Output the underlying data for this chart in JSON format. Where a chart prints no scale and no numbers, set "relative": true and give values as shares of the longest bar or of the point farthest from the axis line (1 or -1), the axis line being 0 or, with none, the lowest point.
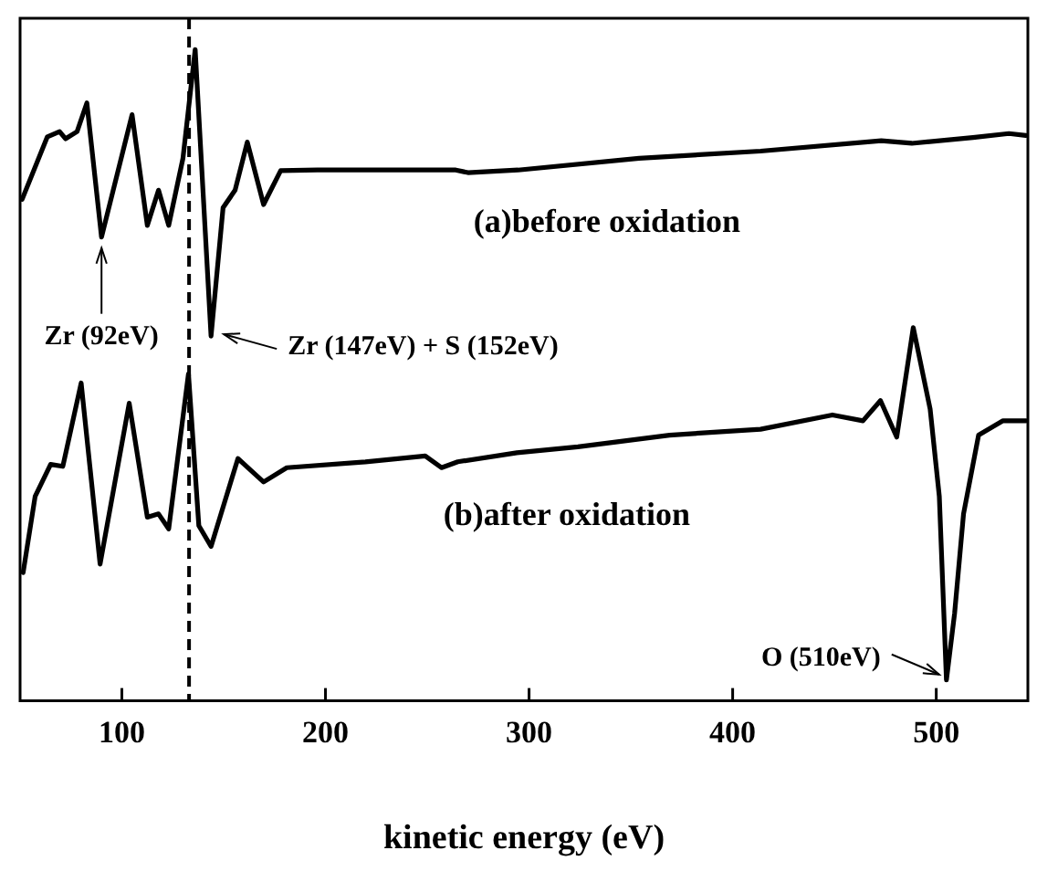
{
  "chart_data": {
    "type": "line",
    "relative": true,
    "xlabel": "kinetic energy (eV)",
    "xlim": [
      50,
      545
    ],
    "xticks": [
      100,
      200,
      300,
      400,
      500
    ],
    "tick_labels": "x",
    "grid": false,
    "legend": false,
    "marker": "none",
    "line_style": "solid",
    "ref_lines": [
      {
        "axis": "x",
        "value": 133,
        "line_style": "dashed",
        "color": "#000000"
      }
    ],
    "annotations": [
      {
        "text": "Zr (92eV)",
        "x": 90,
        "y": 0.712
      },
      {
        "text": "Zr (147eV) + S (152eV)",
        "x": 143.8,
        "y": 0.56
      },
      {
        "text": "O (510eV)",
        "x": 505,
        "y": 0.032
      }
    ],
    "series": [
      {
        "name": "(a)before oxidation",
        "color": "#000000",
        "x": [
          51,
          63.4,
          69.4,
          72.3,
          78,
          82.8,
          90,
          105,
          112.5,
          118,
          123,
          130,
          136,
          143.8,
          149.7,
          155.6,
          161.6,
          169.6,
          178,
          196,
          219.6,
          264,
          270,
          294.6,
          354,
          413.7,
          473,
          488,
          518,
          535.7,
          544
        ],
        "values": [
          0.77,
          0.866,
          0.874,
          0.863,
          0.874,
          0.918,
          0.712,
          0.9,
          0.73,
          0.784,
          0.73,
          0.833,
          1,
          0.56,
          0.757,
          0.784,
          0.858,
          0.762,
          0.814,
          0.815,
          0.815,
          0.815,
          0.811,
          0.815,
          0.833,
          0.844,
          0.86,
          0.856,
          0.865,
          0.871,
          0.868
        ]
      },
      {
        "name": "(b)after oxidation",
        "color": "#000000",
        "x": [
          51.5,
          57.4,
          65,
          71,
          80,
          89.3,
          103.6,
          112.5,
          118,
          123,
          132.7,
          137.8,
          143.8,
          157,
          169.6,
          181,
          219.6,
          249,
          257,
          265,
          294,
          324,
          369,
          413.7,
          449,
          464,
          472.6,
          480.6,
          488.7,
          497,
          501.5,
          505,
          509,
          513.4,
          520.8,
          532.8,
          544
        ],
        "values": [
          0.197,
          0.314,
          0.363,
          0.36,
          0.488,
          0.21,
          0.457,
          0.282,
          0.287,
          0.264,
          0.502,
          0.269,
          0.237,
          0.372,
          0.336,
          0.358,
          0.367,
          0.376,
          0.358,
          0.367,
          0.381,
          0.39,
          0.408,
          0.417,
          0.439,
          0.43,
          0.461,
          0.405,
          0.573,
          0.448,
          0.314,
          0.032,
          0.134,
          0.287,
          0.408,
          0.43,
          0.43
        ]
      }
    ]
  }
}
